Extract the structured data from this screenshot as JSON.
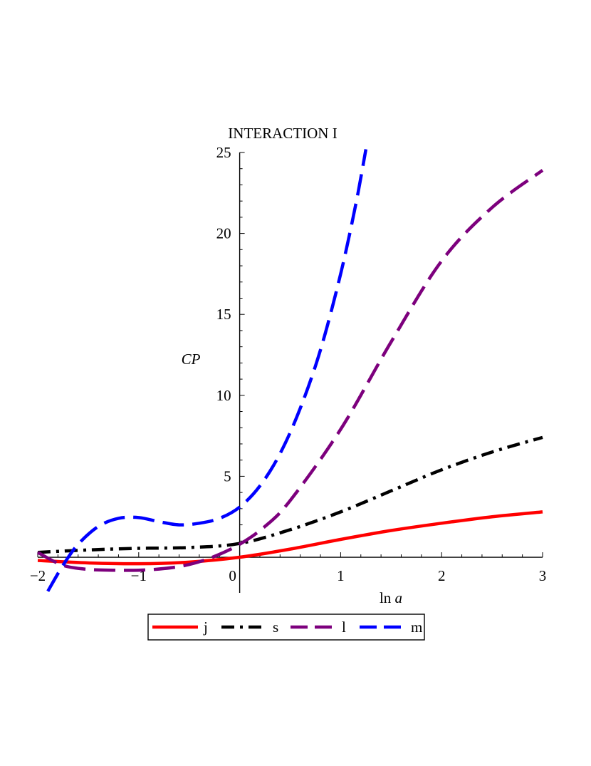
{
  "chart_data": {
    "type": "line",
    "title": "INTERACTION I",
    "xlabel": "ln a",
    "xlabel_parts": {
      "prefix": "ln",
      "variable": "a"
    },
    "ylabel": "CP",
    "xlim": [
      -2,
      3
    ],
    "ylim": [
      -2.2,
      25
    ],
    "x_ticks": [
      -2,
      -1,
      0,
      1,
      2,
      3
    ],
    "x_tick_labels": [
      "−2",
      "−1",
      "0",
      "1",
      "2",
      "3"
    ],
    "y_ticks": [
      5,
      10,
      15,
      20,
      25
    ],
    "y_tick_labels": [
      "5",
      "10",
      "15",
      "20",
      "25"
    ],
    "grid": false,
    "legend_position": "bottom",
    "series": [
      {
        "name": "j",
        "color": "#ff0000",
        "dash": "solid",
        "x": [
          -2,
          -1.5,
          -1,
          -0.5,
          0,
          0.5,
          1,
          1.5,
          2,
          2.5,
          3
        ],
        "y": [
          -0.2,
          -0.35,
          -0.4,
          -0.3,
          0,
          0.5,
          1.1,
          1.65,
          2.1,
          2.5,
          2.8
        ]
      },
      {
        "name": "s",
        "color": "#000000",
        "dash": "dashdot",
        "x": [
          -2,
          -1.5,
          -1,
          -0.5,
          0,
          0.5,
          1,
          1.5,
          2,
          2.5,
          3
        ],
        "y": [
          0.3,
          0.45,
          0.55,
          0.6,
          0.85,
          1.7,
          2.8,
          4.1,
          5.4,
          6.5,
          7.4
        ]
      },
      {
        "name": "l",
        "color": "#7d007d",
        "dash": "longdash",
        "x": [
          -2,
          -1.75,
          -1.5,
          -1.25,
          -1,
          -0.75,
          -0.5,
          -0.25,
          0,
          0.25,
          0.5,
          1,
          1.5,
          2,
          2.5,
          3
        ],
        "y": [
          0.3,
          -0.5,
          -0.75,
          -0.8,
          -0.8,
          -0.7,
          -0.45,
          0.05,
          0.8,
          1.9,
          3.5,
          7.9,
          13.3,
          18.3,
          21.6,
          23.9
        ]
      },
      {
        "name": "m",
        "color": "#0000ff",
        "dash": "longdash",
        "x": [
          -1.9,
          -1.75,
          -1.6,
          -1.4,
          -1.2,
          -1.0,
          -0.8,
          -0.6,
          -0.4,
          -0.2,
          0,
          0.2,
          0.4,
          0.6,
          0.8,
          1.0,
          1.15,
          1.25
        ],
        "y": [
          -2.1,
          -0.5,
          0.8,
          1.9,
          2.4,
          2.45,
          2.2,
          2.0,
          2.1,
          2.4,
          3.1,
          4.4,
          6.4,
          9.2,
          12.8,
          17.5,
          21.8,
          25.2
        ]
      }
    ]
  }
}
